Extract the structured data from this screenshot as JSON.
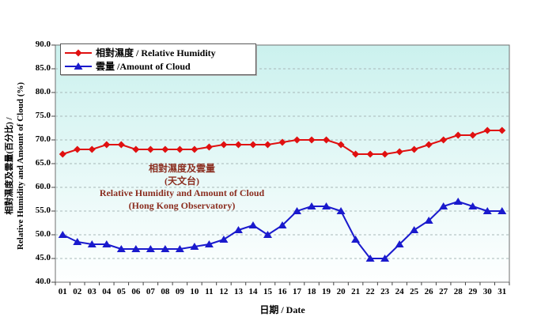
{
  "chart_data": {
    "type": "line",
    "title": "相對濕度及雲量 (天文台) / Relative Humidity and Amount of Cloud (Hong Kong Observatory)",
    "xlabel": "日期 / Date",
    "ylabel_line1": "相對濕度及雲量(百分比) /",
    "ylabel_line2": "Relative Humidity and Amount of Cloud (%)",
    "categories": [
      "01",
      "02",
      "03",
      "04",
      "05",
      "06",
      "07",
      "08",
      "09",
      "10",
      "11",
      "12",
      "13",
      "14",
      "15",
      "16",
      "17",
      "18",
      "19",
      "20",
      "21",
      "22",
      "23",
      "24",
      "25",
      "26",
      "27",
      "28",
      "29",
      "30",
      "31"
    ],
    "series": [
      {
        "name": "相對濕度 / Relative Humidity",
        "color": "#e01010",
        "marker": "diamond",
        "values": [
          67,
          68,
          68,
          69,
          69,
          68,
          68,
          68,
          68,
          68,
          68.5,
          69,
          69,
          69,
          69,
          69.5,
          70,
          70,
          70,
          69,
          67,
          67,
          67,
          67.5,
          68,
          69,
          70,
          71,
          71,
          72,
          72
        ]
      },
      {
        "name": "雲量 /Amount of Cloud",
        "color": "#1a1acd",
        "marker": "triangle",
        "values": [
          50,
          48.5,
          48,
          48,
          47,
          47,
          47,
          47,
          47,
          47.5,
          48,
          49,
          51,
          52,
          50,
          52,
          55,
          56,
          56,
          55,
          49,
          45,
          45,
          48,
          51,
          53,
          56,
          57,
          56,
          55,
          55
        ]
      }
    ],
    "ylim": [
      40,
      90
    ],
    "ytick_step": 5,
    "y_tick_labels": [
      "40.0",
      "45.0",
      "50.0",
      "55.0",
      "60.0",
      "65.0",
      "70.0",
      "75.0",
      "80.0",
      "85.0",
      "90.0"
    ],
    "grid": "horizontal dashed",
    "legend_position": "top-left inside plot area",
    "annotation_lines": [
      "相對濕度及雲量",
      "(天文台)",
      "Relative Humidity and Amount of Cloud",
      "(Hong Kong Observatory)"
    ],
    "annotation_color": "#8b2e20",
    "plot_bg_top": "#cbf1ee",
    "plot_bg_bottom": "#feffff",
    "axis_color": "#6f6f6f",
    "gridline_color": "#a8b8b8"
  }
}
